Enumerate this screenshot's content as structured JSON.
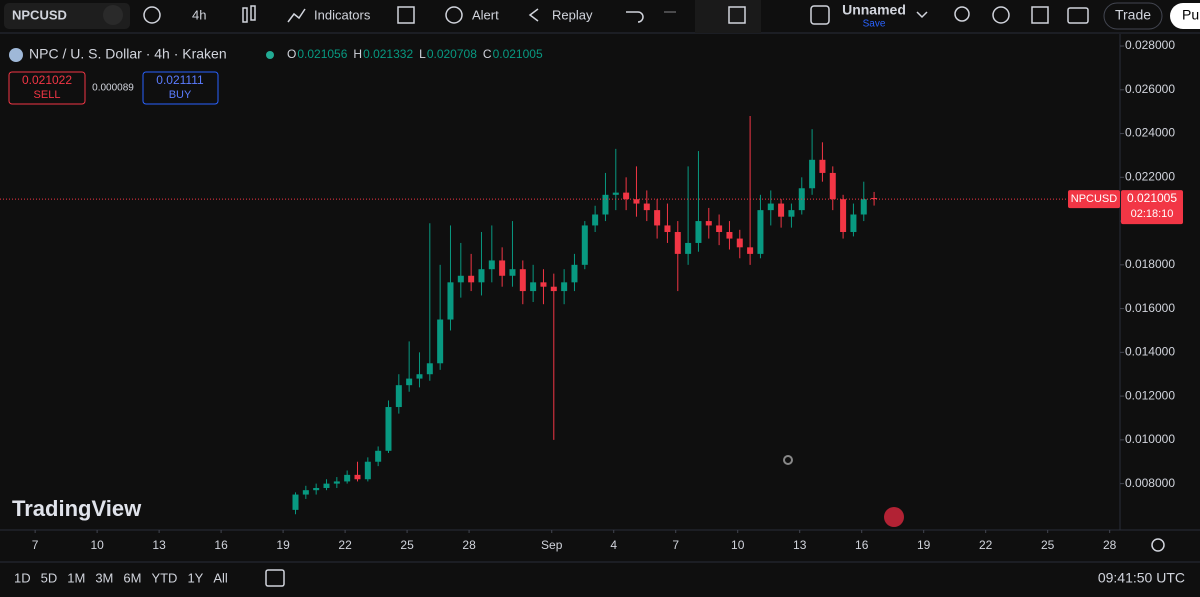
{
  "toolbar": {
    "symbol": "NPCUSD",
    "interval": "4h",
    "indicators": "Indicators",
    "alert": "Alert",
    "replay": "Replay",
    "layout_name": "Unnamed",
    "save": "Save",
    "trade": "Trade",
    "publish": "Pu"
  },
  "chart_data": {
    "type": "candlestick",
    "title": "NPC / U. S. Dollar · 4h · Kraken",
    "ohlc": [
      {
        "label": "O",
        "value": 0.021056
      },
      {
        "label": "H",
        "value": 0.021332
      },
      {
        "label": "L",
        "value": 0.020708
      },
      {
        "label": "C",
        "value": 0.021005
      }
    ],
    "sell": {
      "price": 0.021022,
      "label": "SELL"
    },
    "spread": 8.9e-05,
    "buy": {
      "price": 0.021111,
      "label": "BUY"
    },
    "watermark": "TradingView",
    "last_price": {
      "symbol": "NPCUSD",
      "price": 0.021005,
      "countdown": "02:18:10"
    },
    "up_color": "#089981",
    "down_color": "#f23645",
    "ylim": [
      0.00588,
      0.02855
    ],
    "yticks": [
      {
        "value": 0.008,
        "label": "0.008000"
      },
      {
        "value": 0.01,
        "label": "0.010000"
      },
      {
        "value": 0.012,
        "label": "0.012000"
      },
      {
        "value": 0.014,
        "label": "0.014000"
      },
      {
        "value": 0.016,
        "label": "0.016000"
      },
      {
        "value": 0.018,
        "label": "0.018000"
      },
      {
        "value": 0.02,
        "label": "0.020000"
      },
      {
        "value": 0.022,
        "label": "0.022000"
      },
      {
        "value": 0.024,
        "label": "0.024000"
      },
      {
        "value": 0.026,
        "label": "0.026000"
      },
      {
        "value": 0.028,
        "label": "0.028000"
      }
    ],
    "xlim": [
      5.3,
      59.5
    ],
    "xticks": [
      {
        "value": 7,
        "label": "7"
      },
      {
        "value": 10,
        "label": "10"
      },
      {
        "value": 13,
        "label": "13"
      },
      {
        "value": 16,
        "label": "16"
      },
      {
        "value": 19,
        "label": "19"
      },
      {
        "value": 22,
        "label": "22"
      },
      {
        "value": 25,
        "label": "25"
      },
      {
        "value": 28,
        "label": "28"
      },
      {
        "value": 32,
        "label": "Sep"
      },
      {
        "value": 35,
        "label": "4"
      },
      {
        "value": 38,
        "label": "7"
      },
      {
        "value": 41,
        "label": "10"
      },
      {
        "value": 44,
        "label": "13"
      },
      {
        "value": 47,
        "label": "16"
      },
      {
        "value": 50,
        "label": "19"
      },
      {
        "value": 53,
        "label": "22"
      },
      {
        "value": 56,
        "label": "25"
      },
      {
        "value": 59,
        "label": "28"
      }
    ],
    "candles": [
      {
        "x": 19.6,
        "o": 0.0068,
        "h": 0.0076,
        "l": 0.0066,
        "c": 0.0075
      },
      {
        "x": 20.1,
        "o": 0.0075,
        "h": 0.0079,
        "l": 0.0073,
        "c": 0.0077
      },
      {
        "x": 20.6,
        "o": 0.0077,
        "h": 0.008,
        "l": 0.0075,
        "c": 0.0078
      },
      {
        "x": 21.1,
        "o": 0.0078,
        "h": 0.0082,
        "l": 0.0077,
        "c": 0.008
      },
      {
        "x": 21.6,
        "o": 0.008,
        "h": 0.0083,
        "l": 0.0078,
        "c": 0.0081
      },
      {
        "x": 22.1,
        "o": 0.0081,
        "h": 0.0086,
        "l": 0.008,
        "c": 0.0084
      },
      {
        "x": 22.6,
        "o": 0.0084,
        "h": 0.009,
        "l": 0.0081,
        "c": 0.0082
      },
      {
        "x": 23.1,
        "o": 0.0082,
        "h": 0.0092,
        "l": 0.0081,
        "c": 0.009
      },
      {
        "x": 23.6,
        "o": 0.009,
        "h": 0.0097,
        "l": 0.0088,
        "c": 0.0095
      },
      {
        "x": 24.1,
        "o": 0.0095,
        "h": 0.0118,
        "l": 0.0094,
        "c": 0.0115
      },
      {
        "x": 24.6,
        "o": 0.0115,
        "h": 0.013,
        "l": 0.0112,
        "c": 0.0125
      },
      {
        "x": 25.1,
        "o": 0.0125,
        "h": 0.0145,
        "l": 0.0122,
        "c": 0.0128
      },
      {
        "x": 25.6,
        "o": 0.0128,
        "h": 0.014,
        "l": 0.0124,
        "c": 0.013
      },
      {
        "x": 26.1,
        "o": 0.013,
        "h": 0.0199,
        "l": 0.0127,
        "c": 0.0135
      },
      {
        "x": 26.6,
        "o": 0.0135,
        "h": 0.018,
        "l": 0.0132,
        "c": 0.0155
      },
      {
        "x": 27.1,
        "o": 0.0155,
        "h": 0.0198,
        "l": 0.015,
        "c": 0.0172
      },
      {
        "x": 27.6,
        "o": 0.0172,
        "h": 0.019,
        "l": 0.0165,
        "c": 0.0175
      },
      {
        "x": 28.1,
        "o": 0.0175,
        "h": 0.0185,
        "l": 0.0168,
        "c": 0.0172
      },
      {
        "x": 28.6,
        "o": 0.0172,
        "h": 0.0195,
        "l": 0.0166,
        "c": 0.0178
      },
      {
        "x": 29.1,
        "o": 0.0178,
        "h": 0.0198,
        "l": 0.0172,
        "c": 0.0182
      },
      {
        "x": 29.6,
        "o": 0.0182,
        "h": 0.0188,
        "l": 0.017,
        "c": 0.0175
      },
      {
        "x": 30.1,
        "o": 0.0175,
        "h": 0.02,
        "l": 0.017,
        "c": 0.0178
      },
      {
        "x": 30.6,
        "o": 0.0178,
        "h": 0.0182,
        "l": 0.0162,
        "c": 0.0168
      },
      {
        "x": 31.1,
        "o": 0.0168,
        "h": 0.018,
        "l": 0.0163,
        "c": 0.0172
      },
      {
        "x": 31.6,
        "o": 0.0172,
        "h": 0.0178,
        "l": 0.0162,
        "c": 0.017
      },
      {
        "x": 32.1,
        "o": 0.017,
        "h": 0.0176,
        "l": 0.01,
        "c": 0.0168
      },
      {
        "x": 32.6,
        "o": 0.0168,
        "h": 0.0178,
        "l": 0.0162,
        "c": 0.0172
      },
      {
        "x": 33.1,
        "o": 0.0172,
        "h": 0.0185,
        "l": 0.0168,
        "c": 0.018
      },
      {
        "x": 33.6,
        "o": 0.018,
        "h": 0.02,
        "l": 0.0178,
        "c": 0.0198
      },
      {
        "x": 34.1,
        "o": 0.0198,
        "h": 0.0207,
        "l": 0.0195,
        "c": 0.0203
      },
      {
        "x": 34.6,
        "o": 0.0203,
        "h": 0.0222,
        "l": 0.02,
        "c": 0.0212
      },
      {
        "x": 35.1,
        "o": 0.0212,
        "h": 0.0233,
        "l": 0.0205,
        "c": 0.0213
      },
      {
        "x": 35.6,
        "o": 0.0213,
        "h": 0.022,
        "l": 0.0205,
        "c": 0.021
      },
      {
        "x": 36.1,
        "o": 0.021,
        "h": 0.0225,
        "l": 0.0202,
        "c": 0.0208
      },
      {
        "x": 36.6,
        "o": 0.0208,
        "h": 0.0214,
        "l": 0.02,
        "c": 0.0205
      },
      {
        "x": 37.1,
        "o": 0.0205,
        "h": 0.021,
        "l": 0.0192,
        "c": 0.0198
      },
      {
        "x": 37.6,
        "o": 0.0198,
        "h": 0.0208,
        "l": 0.019,
        "c": 0.0195
      },
      {
        "x": 38.1,
        "o": 0.0195,
        "h": 0.02,
        "l": 0.0168,
        "c": 0.0185
      },
      {
        "x": 38.6,
        "o": 0.0185,
        "h": 0.0225,
        "l": 0.018,
        "c": 0.019
      },
      {
        "x": 39.1,
        "o": 0.019,
        "h": 0.0232,
        "l": 0.0186,
        "c": 0.02
      },
      {
        "x": 39.6,
        "o": 0.02,
        "h": 0.0206,
        "l": 0.0192,
        "c": 0.0198
      },
      {
        "x": 40.1,
        "o": 0.0198,
        "h": 0.0203,
        "l": 0.0189,
        "c": 0.0195
      },
      {
        "x": 40.6,
        "o": 0.0195,
        "h": 0.02,
        "l": 0.0187,
        "c": 0.0192
      },
      {
        "x": 41.1,
        "o": 0.0192,
        "h": 0.0196,
        "l": 0.0183,
        "c": 0.0188
      },
      {
        "x": 41.6,
        "o": 0.0188,
        "h": 0.0248,
        "l": 0.018,
        "c": 0.0185
      },
      {
        "x": 42.1,
        "o": 0.0185,
        "h": 0.0212,
        "l": 0.0183,
        "c": 0.0205
      },
      {
        "x": 42.6,
        "o": 0.0205,
        "h": 0.0214,
        "l": 0.0198,
        "c": 0.0208
      },
      {
        "x": 43.1,
        "o": 0.0208,
        "h": 0.021,
        "l": 0.0197,
        "c": 0.0202
      },
      {
        "x": 43.6,
        "o": 0.0202,
        "h": 0.0208,
        "l": 0.0197,
        "c": 0.0205
      },
      {
        "x": 44.1,
        "o": 0.0205,
        "h": 0.022,
        "l": 0.0203,
        "c": 0.0215
      },
      {
        "x": 44.6,
        "o": 0.0215,
        "h": 0.0242,
        "l": 0.0212,
        "c": 0.0228
      },
      {
        "x": 45.1,
        "o": 0.0228,
        "h": 0.0236,
        "l": 0.0218,
        "c": 0.0222
      },
      {
        "x": 45.6,
        "o": 0.0222,
        "h": 0.0225,
        "l": 0.0205,
        "c": 0.021
      },
      {
        "x": 46.1,
        "o": 0.021,
        "h": 0.0212,
        "l": 0.0192,
        "c": 0.0195
      },
      {
        "x": 46.6,
        "o": 0.0195,
        "h": 0.0208,
        "l": 0.0193,
        "c": 0.0203
      },
      {
        "x": 47.1,
        "o": 0.0203,
        "h": 0.0218,
        "l": 0.02,
        "c": 0.021
      },
      {
        "x": 47.6,
        "o": 0.021056,
        "h": 0.021332,
        "l": 0.020708,
        "c": 0.021005
      }
    ]
  },
  "bottom": {
    "ranges": [
      "1D",
      "5D",
      "1M",
      "3M",
      "6M",
      "YTD",
      "1Y",
      "All"
    ],
    "time": "09:41:50 UTC"
  }
}
